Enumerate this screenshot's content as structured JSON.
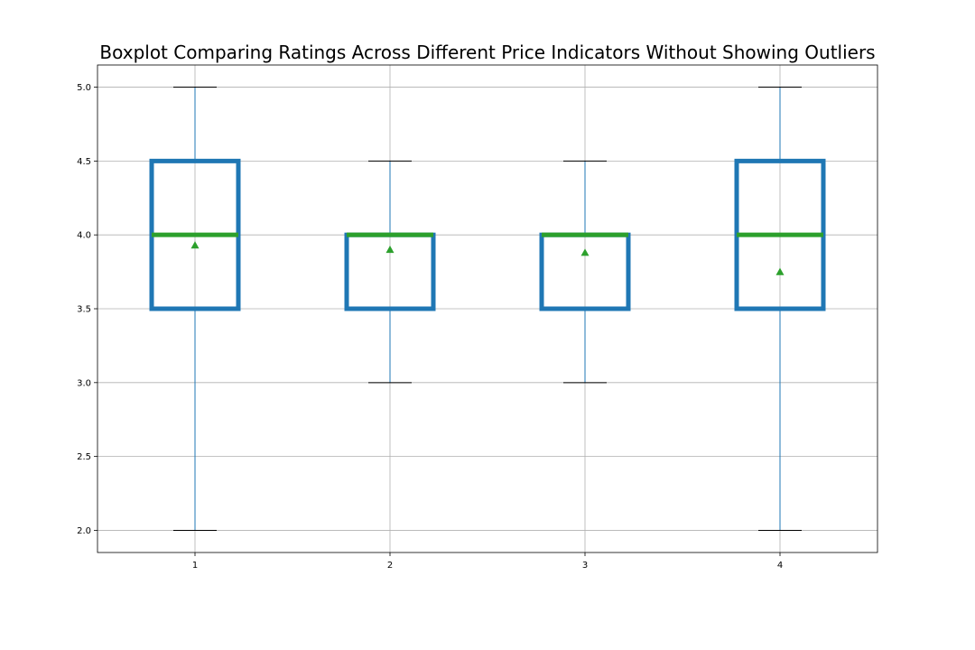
{
  "chart_data": {
    "type": "box",
    "title": "Boxplot Comparing Ratings Across Different Price Indicators Without Showing Outliers",
    "xlabel": "",
    "ylabel": "",
    "categories": [
      "1",
      "2",
      "3",
      "4"
    ],
    "boxes": [
      {
        "category": "1",
        "whisker_low": 2.0,
        "q1": 3.5,
        "median": 4.0,
        "q3": 4.5,
        "whisker_high": 5.0,
        "mean": 3.93
      },
      {
        "category": "2",
        "whisker_low": 3.0,
        "q1": 3.5,
        "median": 4.0,
        "q3": 4.0,
        "whisker_high": 4.5,
        "mean": 3.9
      },
      {
        "category": "3",
        "whisker_low": 3.0,
        "q1": 3.5,
        "median": 4.0,
        "q3": 4.0,
        "whisker_high": 4.5,
        "mean": 3.88
      },
      {
        "category": "4",
        "whisker_low": 2.0,
        "q1": 3.5,
        "median": 4.0,
        "q3": 4.5,
        "whisker_high": 5.0,
        "mean": 3.75
      }
    ],
    "yticks": [
      2.0,
      2.5,
      3.0,
      3.5,
      4.0,
      4.5,
      5.0
    ],
    "ytick_labels": [
      "2.0",
      "2.5",
      "3.0",
      "3.5",
      "4.0",
      "4.5",
      "5.0"
    ],
    "ylim": [
      1.85,
      5.15
    ],
    "xlim": [
      0.5,
      4.5
    ],
    "grid": true,
    "show_outliers": false,
    "show_means": true,
    "legend": "none",
    "colors": {
      "box": "#1f77b4",
      "median": "#2ca02c",
      "mean_marker": "#2ca02c",
      "whisker": "#1f77b4",
      "cap": "#000000",
      "grid": "#b0b0b0",
      "axes": "#000000"
    }
  }
}
